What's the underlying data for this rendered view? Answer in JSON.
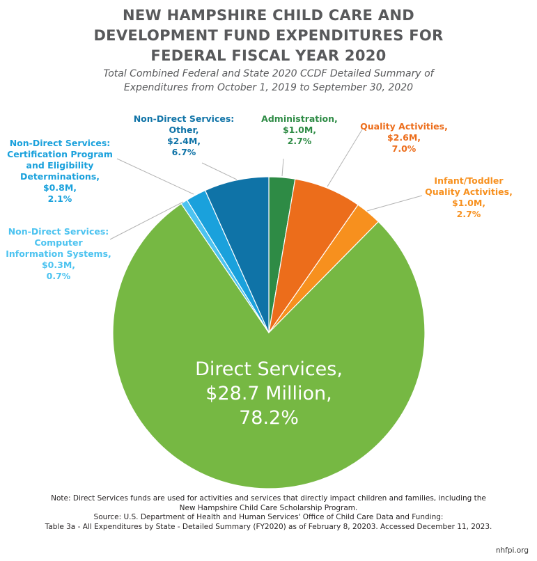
{
  "chart_data": {
    "type": "pie",
    "title": "NEW HAMPSHIRE CHILD CARE AND DEVELOPMENT FUND EXPENDITURES FOR FEDERAL FISCAL YEAR 2020",
    "title_lines": [
      "NEW HAMPSHIRE CHILD CARE AND",
      "DEVELOPMENT FUND EXPENDITURES FOR",
      "FEDERAL FISCAL YEAR 2020"
    ],
    "subtitle": "Total Combined Federal and State 2020 CCDF Detailed Summary of Expenditures from October 1, 2019 to September 30, 2020",
    "subtitle_lines": [
      "Total Combined Federal and State 2020 CCDF Detailed Summary of",
      "Expenditures from October 1, 2019 to September 30, 2020"
    ],
    "slices": [
      {
        "name": "Administration",
        "value_millions": 1.0,
        "percent": 2.7,
        "color": "#2e8b45",
        "label_lines": [
          "Administration,",
          "$1.0M,",
          "2.7%"
        ]
      },
      {
        "name": "Quality Activities",
        "value_millions": 2.6,
        "percent": 7.0,
        "color": "#ec6d1b",
        "label_lines": [
          "Quality Activities,",
          "$2.6M,",
          "7.0%"
        ]
      },
      {
        "name": "Infant/Toddler Quality Activities",
        "value_millions": 1.0,
        "percent": 2.7,
        "color": "#f7901e",
        "label_lines": [
          "Infant/Toddler",
          "Quality Activities,",
          "$1.0M,",
          "2.7%"
        ]
      },
      {
        "name": "Direct Services",
        "value_millions": 28.7,
        "percent": 78.2,
        "color": "#76b843",
        "label_lines": [
          "Direct Services,",
          "$28.7 Million,",
          "78.2%"
        ]
      },
      {
        "name": "Non-Direct Services: Computer Information Systems",
        "value_millions": 0.3,
        "percent": 0.7,
        "color": "#4cc3f0",
        "label_lines": [
          "Non-Direct Services:",
          "Computer",
          "Information  Systems,",
          "$0.3M,",
          "0.7%"
        ]
      },
      {
        "name": "Non-Direct Services: Certification Program and Eligibility Determinations",
        "value_millions": 0.8,
        "percent": 2.1,
        "color": "#1aa1dc",
        "label_lines": [
          "Non-Direct Services:",
          "Certification Program",
          "and Eligibility",
          "Determinations,",
          "$0.8M,",
          "2.1%"
        ]
      },
      {
        "name": "Non-Direct Services: Other",
        "value_millions": 2.4,
        "percent": 6.7,
        "color": "#0f73a7",
        "label_lines": [
          "Non-Direct Services:",
          "Other,",
          "$2.4M,",
          "6.7%"
        ]
      }
    ]
  },
  "notes": [
    "Note: Direct Services funds are used for activities and services that directly impact children and families, including the",
    "New Hampshire Child Care Scholarship Program.",
    "Source: U.S. Department of Health and Human Services' Office of Child Care Data and Funding:",
    "Table 3a - All Expenditures by State - Detailed Summary (FY2020) as of February 8, 20203. Accessed December 11, 2023."
  ],
  "brand": "nhfpi.org"
}
